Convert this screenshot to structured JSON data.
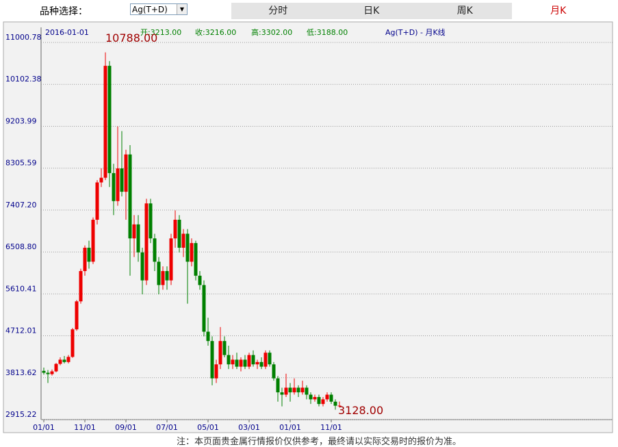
{
  "header": {
    "picker_label": "品种选择：",
    "selected": "Ag(T+D)",
    "tabs": [
      "分时",
      "日K",
      "周K",
      "月K"
    ],
    "active_tab": "月K"
  },
  "chart_data": {
    "type": "candlestick",
    "info": {
      "date": "2016-01-01",
      "open": "开:3213.00",
      "close": "收:3216.00",
      "high": "高:3302.00",
      "low": "低:3188.00",
      "legend": "Ag(T+D) - 月K线"
    },
    "categories": [
      "01/01",
      null,
      null,
      null,
      null,
      null,
      null,
      null,
      null,
      null,
      "11/01",
      null,
      null,
      null,
      null,
      null,
      null,
      null,
      null,
      null,
      "09/01",
      null,
      null,
      null,
      null,
      null,
      null,
      null,
      null,
      null,
      "07/01",
      null,
      null,
      null,
      null,
      null,
      null,
      null,
      null,
      null,
      "05/01",
      null,
      null,
      null,
      null,
      null,
      null,
      null,
      null,
      null,
      "03/01",
      null,
      null,
      null,
      null,
      null,
      null,
      null,
      null,
      null,
      "01/01",
      null,
      null,
      null,
      null,
      null,
      null,
      null,
      null,
      null,
      "11/01",
      null,
      null
    ],
    "open": [
      3960,
      3920,
      3890,
      3950,
      4110,
      4200,
      4150,
      4260,
      4850,
      5450,
      6100,
      6600,
      6300,
      7200,
      8000,
      8100,
      10500,
      8200,
      7600,
      8300,
      7800,
      8600,
      6800,
      7100,
      6500,
      5900,
      7550,
      6800,
      6300,
      5800,
      6100,
      5900,
      6800,
      7200,
      6600,
      6900,
      6300,
      6700,
      6000,
      5800,
      4800,
      4600,
      3800,
      4100,
      4600,
      4300,
      4100,
      4200,
      4050,
      4200,
      4050,
      4300,
      4100,
      4150,
      4050,
      4350,
      4100,
      3800,
      3500,
      3450,
      3600,
      3500,
      3600,
      3500,
      3600,
      3450,
      3350,
      3400,
      3250,
      3350,
      3450,
      3300,
      3213
    ],
    "high": [
      4030,
      3980,
      3990,
      4130,
      4250,
      4280,
      4300,
      4880,
      5480,
      6150,
      6650,
      6750,
      7250,
      8050,
      8300,
      10788,
      10600,
      8400,
      9200,
      9100,
      8700,
      8800,
      7300,
      7300,
      6600,
      7650,
      7650,
      6900,
      6400,
      6200,
      6200,
      6900,
      7400,
      7300,
      7000,
      7000,
      6800,
      6750,
      6100,
      5900,
      5100,
      4700,
      4200,
      4900,
      4700,
      4500,
      4300,
      4350,
      4250,
      4300,
      4350,
      4400,
      4200,
      4250,
      4400,
      4400,
      4150,
      3850,
      3600,
      3900,
      3700,
      3800,
      3650,
      3750,
      3650,
      3500,
      3450,
      3450,
      3400,
      3500,
      3500,
      3350,
      3302
    ],
    "low": [
      3880,
      3700,
      3860,
      3930,
      4080,
      4120,
      4120,
      4240,
      4820,
      5400,
      6000,
      6150,
      6250,
      7100,
      7900,
      8050,
      7900,
      7300,
      7500,
      7700,
      7200,
      6000,
      6400,
      6300,
      5600,
      5800,
      6700,
      6100,
      5600,
      5700,
      5700,
      5800,
      6600,
      6500,
      6400,
      5400,
      6200,
      5900,
      5700,
      4700,
      4500,
      3650,
      3700,
      4000,
      4250,
      4000,
      4000,
      4000,
      3950,
      4000,
      4000,
      4050,
      4000,
      4000,
      4000,
      4050,
      3750,
      3300,
      3200,
      3400,
      3300,
      3450,
      3400,
      3450,
      3350,
      3250,
      3300,
      3200,
      3200,
      3300,
      3250,
      3128,
      3188
    ],
    "close": [
      3920,
      3890,
      3950,
      4110,
      4200,
      4150,
      4260,
      4850,
      5450,
      6100,
      6600,
      6300,
      7200,
      8000,
      8100,
      10500,
      8200,
      7600,
      8300,
      7800,
      8600,
      6800,
      7100,
      6500,
      5900,
      7550,
      6800,
      6300,
      5800,
      6100,
      5900,
      6800,
      7200,
      6600,
      6900,
      6300,
      6700,
      6000,
      5800,
      4800,
      4600,
      3800,
      4100,
      4600,
      4300,
      4100,
      4200,
      4050,
      4200,
      4050,
      4300,
      4100,
      4150,
      4050,
      4350,
      4100,
      3800,
      3500,
      3450,
      3600,
      3500,
      3600,
      3500,
      3600,
      3450,
      3350,
      3400,
      3250,
      3350,
      3450,
      3300,
      3213,
      3216
    ],
    "up_color": "#ee0000",
    "down_color": "#008000",
    "ylim": [
      2915.22,
      11000.78
    ],
    "yticks": [
      2915.22,
      3813.62,
      4712.01,
      5610.41,
      {
        "value": 6508.8,
        "label": "6508.80"
      },
      {
        "value": 7407.2,
        "label": "7407.20"
      },
      8305.59,
      9203.99,
      10102.38,
      11000.78
    ],
    "grid": true,
    "annotations": [
      {
        "value": 10788,
        "label": "10788.00",
        "at": "high"
      },
      {
        "value": 3128,
        "label": "3128.00",
        "at": "low"
      }
    ]
  },
  "footnote": "注：本页面贵金属行情报价仅供参考，最终请以实际交易时的报价为准。"
}
